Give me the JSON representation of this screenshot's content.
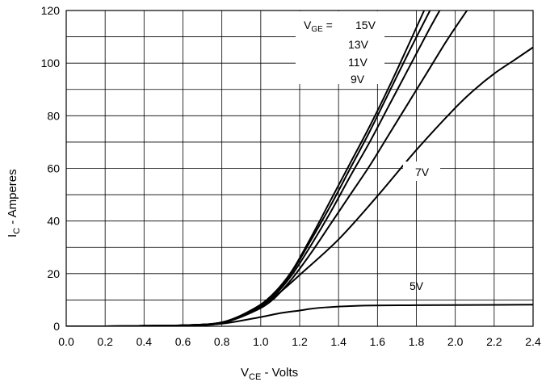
{
  "chart_data": {
    "type": "line",
    "xlabel": {
      "main": "V",
      "sub": "CE",
      "rest": " - Volts"
    },
    "ylabel": {
      "main": "I",
      "sub": "C",
      "rest": " - Amperes"
    },
    "xlim": [
      0.0,
      2.4
    ],
    "ylim": [
      0,
      120
    ],
    "x_ticks": [
      "0.0",
      "0.2",
      "0.4",
      "0.6",
      "0.8",
      "1.0",
      "1.2",
      "1.4",
      "1.6",
      "1.8",
      "2.0",
      "2.2",
      "2.4"
    ],
    "y_ticks": [
      "0",
      "20",
      "40",
      "60",
      "80",
      "100",
      "120"
    ],
    "grid": true,
    "legend_label_prefix": {
      "main": "V",
      "sub": "GE",
      "rest": " = "
    },
    "series": [
      {
        "name": "15V",
        "points": [
          [
            0,
            0
          ],
          [
            0.2,
            0
          ],
          [
            0.4,
            0.2
          ],
          [
            0.6,
            0.4
          ],
          [
            0.8,
            1.5
          ],
          [
            0.96,
            6.5
          ],
          [
            1.06,
            12
          ],
          [
            1.16,
            21
          ],
          [
            1.26,
            34
          ],
          [
            1.36,
            48
          ],
          [
            1.46,
            62
          ],
          [
            1.56,
            76
          ],
          [
            1.66,
            91
          ],
          [
            1.76,
            107
          ],
          [
            1.84,
            120
          ]
        ]
      },
      {
        "name": "13V",
        "points": [
          [
            0,
            0
          ],
          [
            0.2,
            0
          ],
          [
            0.4,
            0.2
          ],
          [
            0.6,
            0.4
          ],
          [
            0.8,
            1.5
          ],
          [
            0.96,
            6.3
          ],
          [
            1.06,
            11.6
          ],
          [
            1.16,
            20.5
          ],
          [
            1.26,
            33
          ],
          [
            1.36,
            46
          ],
          [
            1.46,
            60
          ],
          [
            1.56,
            74
          ],
          [
            1.66,
            89
          ],
          [
            1.76,
            104
          ],
          [
            1.87,
            120
          ]
        ]
      },
      {
        "name": "11V",
        "points": [
          [
            0,
            0
          ],
          [
            0.2,
            0
          ],
          [
            0.4,
            0.2
          ],
          [
            0.6,
            0.4
          ],
          [
            0.8,
            1.4
          ],
          [
            0.96,
            6
          ],
          [
            1.06,
            11
          ],
          [
            1.16,
            19.5
          ],
          [
            1.26,
            31
          ],
          [
            1.36,
            43.5
          ],
          [
            1.46,
            57
          ],
          [
            1.56,
            70
          ],
          [
            1.66,
            84
          ],
          [
            1.76,
            98
          ],
          [
            1.86,
            112
          ],
          [
            1.92,
            120
          ]
        ]
      },
      {
        "name": "9V",
        "points": [
          [
            0,
            0
          ],
          [
            0.2,
            0
          ],
          [
            0.4,
            0.2
          ],
          [
            0.6,
            0.4
          ],
          [
            0.8,
            1.3
          ],
          [
            0.96,
            5.5
          ],
          [
            1.06,
            10
          ],
          [
            1.16,
            18
          ],
          [
            1.26,
            28
          ],
          [
            1.36,
            39
          ],
          [
            1.46,
            50
          ],
          [
            1.56,
            61
          ],
          [
            1.66,
            73
          ],
          [
            1.76,
            85
          ],
          [
            1.86,
            97
          ],
          [
            1.96,
            109
          ],
          [
            2.06,
            120
          ]
        ]
      },
      {
        "name": "7V",
        "points": [
          [
            0,
            0
          ],
          [
            0.2,
            0
          ],
          [
            0.4,
            0.2
          ],
          [
            0.6,
            0.4
          ],
          [
            0.8,
            1.2
          ],
          [
            1.0,
            7.5
          ],
          [
            1.1,
            13
          ],
          [
            1.2,
            19.5
          ],
          [
            1.4,
            33
          ],
          [
            1.6,
            49.5
          ],
          [
            1.8,
            67
          ],
          [
            2.0,
            83
          ],
          [
            2.1,
            90
          ],
          [
            2.2,
            96
          ],
          [
            2.3,
            101
          ],
          [
            2.4,
            106
          ]
        ]
      },
      {
        "name": "5V",
        "points": [
          [
            0,
            0
          ],
          [
            0.2,
            0
          ],
          [
            0.4,
            0.1
          ],
          [
            0.6,
            0.3
          ],
          [
            0.8,
            1
          ],
          [
            1.0,
            3.5
          ],
          [
            1.1,
            5
          ],
          [
            1.2,
            6
          ],
          [
            1.3,
            7
          ],
          [
            1.5,
            7.8
          ],
          [
            1.8,
            8
          ],
          [
            2.1,
            8.1
          ],
          [
            2.4,
            8.2
          ]
        ]
      }
    ]
  }
}
